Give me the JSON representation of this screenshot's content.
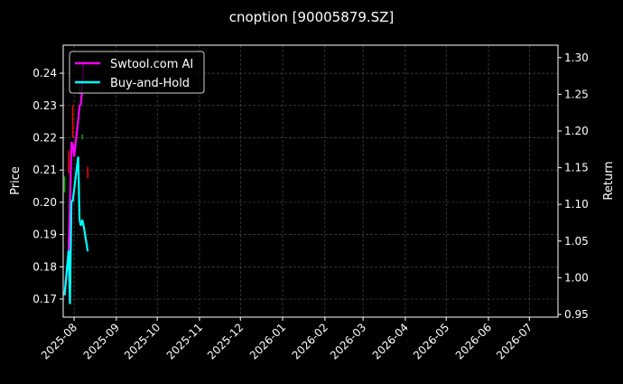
{
  "chart_data": {
    "type": "line",
    "title": "cnoption [90005879.SZ]",
    "ylabel": "Price",
    "y2label": "Return",
    "xlim": [
      "2025-07-24",
      "2026-07-22"
    ],
    "ylim": [
      0.1644,
      0.2487
    ],
    "y2lim": [
      0.9463,
      1.317
    ],
    "x_ticks": [
      "2025-08",
      "2025-09",
      "2025-10",
      "2025-11",
      "2025-12",
      "2026-01",
      "2026-02",
      "2026-03",
      "2026-04",
      "2026-05",
      "2026-06",
      "2026-07"
    ],
    "y_ticks": [
      0.17,
      0.18,
      0.19,
      0.2,
      0.21,
      0.22,
      0.23,
      0.24
    ],
    "y2_ticks": [
      0.95,
      1.0,
      1.05,
      1.1,
      1.15,
      1.2,
      1.25,
      1.3
    ],
    "grid": true,
    "legend_position": "top-left",
    "background": "#000000",
    "dates": [
      "2025-07-25",
      "2025-07-28",
      "2025-07-29",
      "2025-07-30",
      "2025-07-31",
      "2025-08-01",
      "2025-08-04",
      "2025-08-05",
      "2025-08-06",
      "2025-08-07",
      "2025-08-08",
      "2025-08-11"
    ],
    "series": [
      {
        "name": "Swtool.com AI",
        "color": "#ff00ff",
        "axis": "right",
        "values": [
          0.976,
          1.037,
          1.1,
          1.185,
          1.181,
          1.165,
          1.215,
          1.234,
          1.237,
          1.259,
          1.296,
          null
        ]
      },
      {
        "name": "Buy-and-Hold",
        "color": "#00ffff",
        "axis": "right",
        "values": [
          0.976,
          1.037,
          0.964,
          1.104,
          1.105,
          1.12,
          1.165,
          1.079,
          1.071,
          1.079,
          1.071,
          1.036
        ]
      }
    ],
    "candles": [
      {
        "date": "2025-07-25",
        "low": 0.203,
        "high": 0.208,
        "color": "#00aa00"
      },
      {
        "date": "2025-07-28",
        "low": 0.209,
        "high": 0.216,
        "color": "#ff0000"
      },
      {
        "date": "2025-07-31",
        "low": 0.22,
        "high": 0.23,
        "color": "#ff0000"
      },
      {
        "date": "2025-08-05",
        "low": 0.2335,
        "high": 0.236,
        "color": "#00aa00"
      },
      {
        "date": "2025-08-07",
        "low": 0.2195,
        "high": 0.221,
        "color": "#00aa00"
      },
      {
        "date": "2025-08-11",
        "low": 0.2075,
        "high": 0.211,
        "color": "#ff0000"
      }
    ]
  }
}
